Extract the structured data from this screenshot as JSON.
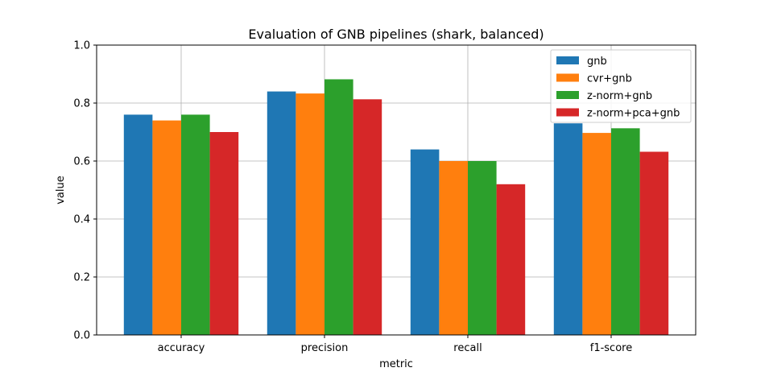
{
  "chart_data": {
    "type": "bar",
    "title": "Evaluation of GNB pipelines (shark, balanced)",
    "xlabel": "metric",
    "ylabel": "value",
    "ylim": [
      0,
      1.0
    ],
    "yticks": [
      "0.0",
      "0.2",
      "0.4",
      "0.6",
      "0.8",
      "1.0"
    ],
    "ytick_values": [
      0,
      0.2,
      0.4,
      0.6,
      0.8,
      1.0
    ],
    "grid": true,
    "legend_position": "top-right",
    "categories": [
      "accuracy",
      "precision",
      "recall",
      "f1-score"
    ],
    "series": [
      {
        "name": "gnb",
        "color": "#1f77b4",
        "values": [
          0.76,
          0.84,
          0.64,
          0.73
        ]
      },
      {
        "name": "cvr+gnb",
        "color": "#ff7f0e",
        "values": [
          0.74,
          0.833,
          0.6,
          0.697
        ]
      },
      {
        "name": "z-norm+gnb",
        "color": "#2ca02c",
        "values": [
          0.76,
          0.882,
          0.6,
          0.713
        ]
      },
      {
        "name": "z-norm+pca+gnb",
        "color": "#d62728",
        "values": [
          0.7,
          0.813,
          0.52,
          0.632
        ]
      }
    ]
  }
}
